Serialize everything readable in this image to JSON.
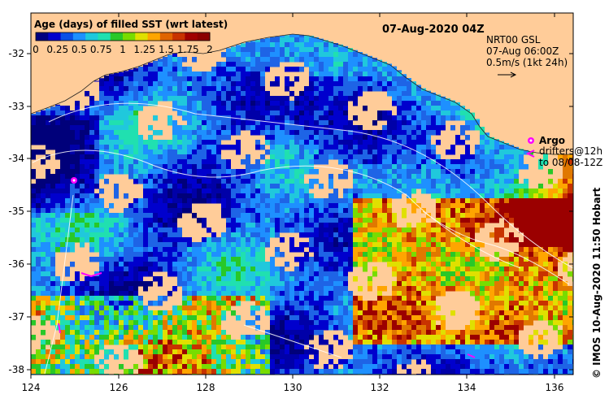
{
  "title": "07-Aug-2020 04Z",
  "colorbar": {
    "title": "Age (days) of filled SST (wrt latest)",
    "tick_labels": [
      "0",
      "0.25",
      "0.5",
      "0.75",
      "1",
      "1.25",
      "1.5",
      "1.75",
      "2"
    ],
    "colors": [
      "#000080",
      "#0000cd",
      "#0a50e6",
      "#1e90ff",
      "#1ec8dc",
      "#20e0b0",
      "#28c828",
      "#78dc00",
      "#e0e000",
      "#ffa500",
      "#e06400",
      "#c83200",
      "#a00000",
      "#8b0000"
    ]
  },
  "info": {
    "line1": "NRT00 GSL",
    "line2": "07-Aug 06:00Z",
    "line3": "0.5m/s (1kt 24h)"
  },
  "legend": {
    "argo_label": "Argo",
    "drifters_line1": "drifters@12h",
    "drifters_line2": "to 08/08-12Z"
  },
  "credit": "© IMOS 10-Aug-2020 11:50 Hobart",
  "axes": {
    "x_ticks": [
      "124",
      "126",
      "128",
      "130",
      "132",
      "134",
      "136"
    ],
    "y_ticks": [
      "-32",
      "-33",
      "-34",
      "-35",
      "-36",
      "-37",
      "-38"
    ]
  },
  "colors": {
    "land": "#ffcc99",
    "no_data": "#ffffff",
    "argo": "#ff00ff"
  }
}
